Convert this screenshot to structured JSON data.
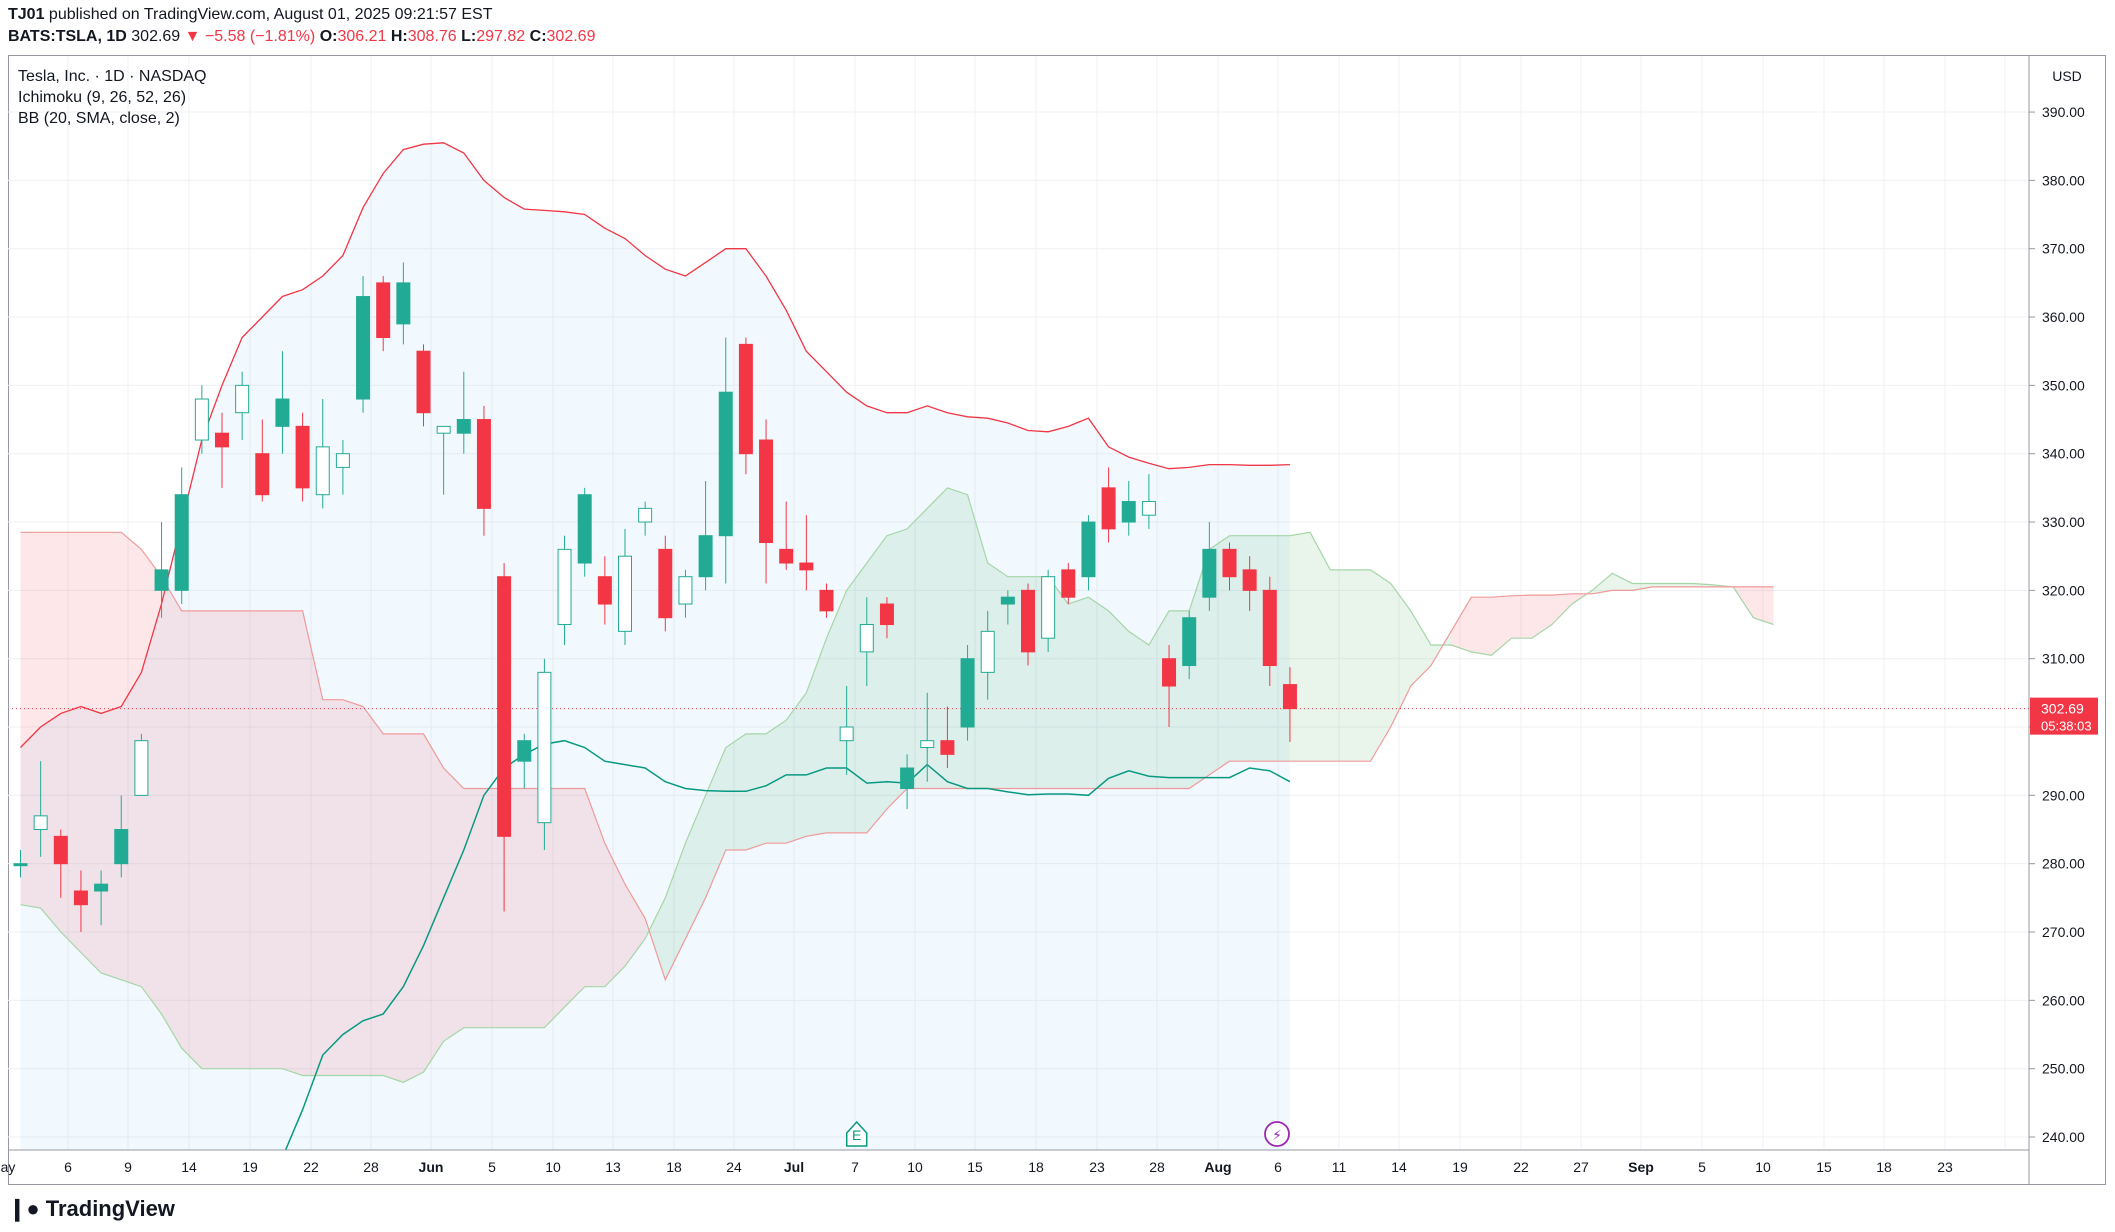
{
  "header": {
    "author": "TJ01",
    "published_text": "published on TradingView.com, August 01, 2025 09:21:57 EST",
    "symbol": "BATS:TSLA, 1D",
    "last": "302.69",
    "change": "▼ −5.58 (−1.81%)",
    "o_label": "O:",
    "o": "306.21",
    "h_label": "H:",
    "h": "308.76",
    "l_label": "L:",
    "l": "297.82",
    "c_label": "C:",
    "c": "302.69"
  },
  "legend": {
    "title": "Tesla, Inc. · 1D · NASDAQ",
    "ichimoku": "Ichimoku (9, 26, 52, 26)",
    "bb": "BB (20, SMA, close, 2)"
  },
  "price_axis": {
    "currency": "USD",
    "last_price": "302.69",
    "countdown": "05:38:03"
  },
  "footer": {
    "logo": "TradingView"
  },
  "colors": {
    "up": "#22ab94",
    "down": "#f23645",
    "bb": "#f23645",
    "bb_fill": "#e3f2fd",
    "base_line": "#089981",
    "cloud_green": "#a5d6a7",
    "cloud_red": "#f7a9a7"
  },
  "chart_data": {
    "type": "candlestick",
    "ylim": [
      237,
      395
    ],
    "y_ticks": [
      240,
      250,
      260,
      270,
      280,
      290,
      300,
      310,
      320,
      330,
      340,
      350,
      360,
      370,
      380,
      390
    ],
    "x_ticks": [
      "ay",
      "6",
      "9",
      "14",
      "19",
      "22",
      "28",
      "Jun",
      "5",
      "10",
      "13",
      "18",
      "24",
      "Jul",
      "7",
      "10",
      "15",
      "18",
      "23",
      "28",
      "Aug",
      "6",
      "11",
      "14",
      "19",
      "22",
      "27",
      "Sep",
      "5",
      "10",
      "15",
      "18",
      "23"
    ],
    "markers": [
      "E",
      "⚡"
    ],
    "candles": [
      {
        "o": 280,
        "h": 282,
        "l": 278,
        "c": 280
      },
      {
        "o": 285,
        "h": 295,
        "l": 281,
        "c": 287
      },
      {
        "o": 284,
        "h": 285,
        "l": 275,
        "c": 280
      },
      {
        "o": 276,
        "h": 279,
        "l": 270,
        "c": 274
      },
      {
        "o": 276,
        "h": 279,
        "l": 271,
        "c": 277
      },
      {
        "o": 280,
        "h": 290,
        "l": 278,
        "c": 285
      },
      {
        "o": 290,
        "h": 299,
        "l": 290,
        "c": 298
      },
      {
        "o": 320,
        "h": 330,
        "l": 316,
        "c": 323
      },
      {
        "o": 320,
        "h": 338,
        "l": 318,
        "c": 334
      },
      {
        "o": 342,
        "h": 350,
        "l": 340,
        "c": 348
      },
      {
        "o": 343,
        "h": 346,
        "l": 335,
        "c": 341
      },
      {
        "o": 346,
        "h": 352,
        "l": 342,
        "c": 350
      },
      {
        "o": 340,
        "h": 345,
        "l": 333,
        "c": 334
      },
      {
        "o": 344,
        "h": 355,
        "l": 340,
        "c": 348
      },
      {
        "o": 344,
        "h": 346,
        "l": 333,
        "c": 335
      },
      {
        "o": 334,
        "h": 348,
        "l": 332,
        "c": 341
      },
      {
        "o": 338,
        "h": 342,
        "l": 334,
        "c": 340
      },
      {
        "o": 348,
        "h": 366,
        "l": 346,
        "c": 363
      },
      {
        "o": 365,
        "h": 366,
        "l": 355,
        "c": 357
      },
      {
        "o": 359,
        "h": 368,
        "l": 356,
        "c": 365
      },
      {
        "o": 355,
        "h": 356,
        "l": 344,
        "c": 346
      },
      {
        "o": 343,
        "h": 344,
        "l": 334,
        "c": 344
      },
      {
        "o": 343,
        "h": 352,
        "l": 340,
        "c": 345
      },
      {
        "o": 345,
        "h": 347,
        "l": 328,
        "c": 332
      },
      {
        "o": 322,
        "h": 324,
        "l": 273,
        "c": 284
      },
      {
        "o": 295,
        "h": 299,
        "l": 291,
        "c": 298
      },
      {
        "o": 286,
        "h": 310,
        "l": 282,
        "c": 308
      },
      {
        "o": 315,
        "h": 328,
        "l": 312,
        "c": 326
      },
      {
        "o": 324,
        "h": 335,
        "l": 322,
        "c": 334
      },
      {
        "o": 322,
        "h": 325,
        "l": 315,
        "c": 318
      },
      {
        "o": 314,
        "h": 329,
        "l": 312,
        "c": 325
      },
      {
        "o": 330,
        "h": 333,
        "l": 328,
        "c": 332
      },
      {
        "o": 326,
        "h": 328,
        "l": 314,
        "c": 316
      },
      {
        "o": 318,
        "h": 323,
        "l": 316,
        "c": 322
      },
      {
        "o": 322,
        "h": 336,
        "l": 320,
        "c": 328
      },
      {
        "o": 328,
        "h": 357,
        "l": 321,
        "c": 349
      },
      {
        "o": 356,
        "h": 357,
        "l": 337,
        "c": 340
      },
      {
        "o": 342,
        "h": 345,
        "l": 321,
        "c": 327
      },
      {
        "o": 326,
        "h": 333,
        "l": 323,
        "c": 324
      },
      {
        "o": 324,
        "h": 331,
        "l": 320,
        "c": 323
      },
      {
        "o": 320,
        "h": 321,
        "l": 316,
        "c": 317
      },
      {
        "o": 298,
        "h": 306,
        "l": 293,
        "c": 300
      },
      {
        "o": 311,
        "h": 319,
        "l": 306,
        "c": 315
      },
      {
        "o": 318,
        "h": 319,
        "l": 313,
        "c": 315
      },
      {
        "o": 291,
        "h": 296,
        "l": 288,
        "c": 294
      },
      {
        "o": 297,
        "h": 305,
        "l": 292,
        "c": 298
      },
      {
        "o": 298,
        "h": 303,
        "l": 294,
        "c": 296
      },
      {
        "o": 300,
        "h": 312,
        "l": 298,
        "c": 310
      },
      {
        "o": 308,
        "h": 317,
        "l": 304,
        "c": 314
      },
      {
        "o": 318,
        "h": 320,
        "l": 315,
        "c": 319
      },
      {
        "o": 320,
        "h": 321,
        "l": 309,
        "c": 311
      },
      {
        "o": 313,
        "h": 323,
        "l": 311,
        "c": 322
      },
      {
        "o": 323,
        "h": 324,
        "l": 318,
        "c": 319
      },
      {
        "o": 322,
        "h": 331,
        "l": 320,
        "c": 330
      },
      {
        "o": 335,
        "h": 338,
        "l": 327,
        "c": 329
      },
      {
        "o": 330,
        "h": 336,
        "l": 328,
        "c": 333
      },
      {
        "o": 331,
        "h": 337,
        "l": 329,
        "c": 333
      },
      {
        "o": 310,
        "h": 312,
        "l": 300,
        "c": 306
      },
      {
        "o": 309,
        "h": 317,
        "l": 307,
        "c": 316
      },
      {
        "o": 319,
        "h": 330,
        "l": 317,
        "c": 326
      },
      {
        "o": 326,
        "h": 327,
        "l": 320,
        "c": 322
      },
      {
        "o": 323,
        "h": 325,
        "l": 317,
        "c": 320
      },
      {
        "o": 320,
        "h": 322,
        "l": 306,
        "c": 309
      },
      {
        "o": 306.21,
        "h": 308.76,
        "l": 297.82,
        "c": 302.69
      }
    ],
    "bb_upper": [
      [
        0,
        297
      ],
      [
        1,
        300
      ],
      [
        2,
        302
      ],
      [
        3,
        303
      ],
      [
        4,
        302
      ],
      [
        5,
        303
      ],
      [
        6,
        308
      ],
      [
        7,
        318
      ],
      [
        8,
        330
      ],
      [
        9,
        342
      ],
      [
        10,
        350
      ],
      [
        11,
        357
      ],
      [
        12,
        360
      ],
      [
        13,
        363
      ],
      [
        14,
        364
      ],
      [
        15,
        366
      ],
      [
        16,
        369
      ],
      [
        17,
        376
      ],
      [
        18,
        381
      ],
      [
        19,
        384.5
      ],
      [
        20,
        385.3
      ],
      [
        21,
        385.5
      ],
      [
        22,
        384
      ],
      [
        23,
        380
      ],
      [
        24,
        377.5
      ],
      [
        25,
        375.8
      ],
      [
        26,
        375.6
      ],
      [
        27,
        375.4
      ],
      [
        28,
        375
      ],
      [
        29,
        373
      ],
      [
        30,
        371.5
      ],
      [
        31,
        369
      ],
      [
        32,
        367
      ],
      [
        33,
        366
      ],
      [
        34,
        368
      ],
      [
        35,
        370
      ],
      [
        36,
        370
      ],
      [
        37,
        366
      ],
      [
        38,
        361
      ],
      [
        39,
        355
      ],
      [
        40,
        352
      ],
      [
        41,
        349
      ],
      [
        42,
        347
      ],
      [
        43,
        346
      ],
      [
        44,
        346
      ],
      [
        45,
        347
      ],
      [
        46,
        346
      ],
      [
        47,
        345.4
      ],
      [
        48,
        345.2
      ],
      [
        49,
        344.5
      ],
      [
        50,
        343.4
      ],
      [
        51,
        343.2
      ],
      [
        52,
        344
      ],
      [
        53,
        345.2
      ],
      [
        54,
        341
      ],
      [
        55,
        339.5
      ],
      [
        56,
        338.6
      ],
      [
        57,
        337.8
      ],
      [
        58,
        338
      ],
      [
        59,
        338.4
      ],
      [
        60,
        338.4
      ],
      [
        61,
        338.3
      ],
      [
        62,
        338.3
      ],
      [
        63,
        338.4
      ]
    ],
    "bb_lower_visible_until": 63,
    "base_line": [
      [
        13,
        237
      ],
      [
        14,
        244
      ],
      [
        15,
        252
      ],
      [
        16,
        255
      ],
      [
        17,
        257
      ],
      [
        18,
        258
      ],
      [
        19,
        262
      ],
      [
        20,
        268
      ],
      [
        21,
        275
      ],
      [
        22,
        282
      ],
      [
        23,
        290
      ],
      [
        24,
        294
      ],
      [
        25,
        296
      ],
      [
        26,
        297.5
      ],
      [
        27,
        298
      ],
      [
        28,
        297
      ],
      [
        29,
        295
      ],
      [
        30,
        294.5
      ],
      [
        31,
        294
      ],
      [
        32,
        292
      ],
      [
        33,
        291
      ],
      [
        34,
        290.7
      ],
      [
        35,
        290.6
      ],
      [
        36,
        290.6
      ],
      [
        37,
        291.4
      ],
      [
        38,
        293
      ],
      [
        39,
        293
      ],
      [
        40,
        294
      ],
      [
        41,
        294
      ],
      [
        42,
        291.8
      ],
      [
        43,
        292
      ],
      [
        44,
        291.8
      ],
      [
        45,
        294.5
      ],
      [
        46,
        292
      ],
      [
        47,
        291
      ],
      [
        48,
        291
      ],
      [
        49,
        290.5
      ],
      [
        50,
        290.1
      ],
      [
        51,
        290.2
      ],
      [
        52,
        290.2
      ],
      [
        53,
        290
      ],
      [
        54,
        292.5
      ],
      [
        55,
        293.6
      ],
      [
        56,
        292.8
      ],
      [
        57,
        292.6
      ],
      [
        58,
        292.6
      ],
      [
        59,
        292.6
      ],
      [
        60,
        292.6
      ],
      [
        61,
        294
      ],
      [
        62,
        293.6
      ],
      [
        63,
        292
      ]
    ],
    "senkou_a": [
      [
        0,
        274
      ],
      [
        1,
        273.5
      ],
      [
        2,
        270
      ],
      [
        3,
        267
      ],
      [
        4,
        264
      ],
      [
        5,
        263
      ],
      [
        6,
        262
      ],
      [
        7,
        258
      ],
      [
        8,
        253
      ],
      [
        9,
        250
      ],
      [
        10,
        250
      ],
      [
        11,
        250
      ],
      [
        12,
        250
      ],
      [
        13,
        250
      ],
      [
        14,
        249
      ],
      [
        15,
        249
      ],
      [
        16,
        249
      ],
      [
        17,
        249
      ],
      [
        18,
        249
      ],
      [
        19,
        248
      ],
      [
        20,
        249.5
      ],
      [
        21,
        254
      ],
      [
        22,
        256
      ],
      [
        23,
        256
      ],
      [
        24,
        256
      ],
      [
        25,
        256
      ],
      [
        26,
        256
      ],
      [
        27,
        259
      ],
      [
        28,
        262
      ],
      [
        29,
        262
      ],
      [
        30,
        265
      ],
      [
        31,
        269
      ],
      [
        32,
        275
      ],
      [
        33,
        283
      ],
      [
        34,
        290
      ],
      [
        35,
        297
      ],
      [
        36,
        299
      ],
      [
        37,
        299
      ],
      [
        38,
        301
      ],
      [
        39,
        305
      ],
      [
        40,
        313
      ],
      [
        41,
        320
      ],
      [
        42,
        324
      ],
      [
        43,
        328
      ],
      [
        44,
        329
      ],
      [
        45,
        332
      ],
      [
        46,
        335
      ],
      [
        47,
        334
      ],
      [
        48,
        324
      ],
      [
        49,
        322
      ],
      [
        50,
        322
      ],
      [
        51,
        322
      ],
      [
        52,
        318
      ],
      [
        53,
        319
      ],
      [
        54,
        317
      ],
      [
        55,
        314
      ],
      [
        56,
        312
      ],
      [
        57,
        317
      ],
      [
        58,
        317
      ],
      [
        59,
        326
      ],
      [
        60,
        328
      ],
      [
        61,
        328
      ],
      [
        62,
        328
      ],
      [
        63,
        328
      ],
      [
        64,
        328.5
      ],
      [
        65,
        323
      ],
      [
        66,
        323
      ],
      [
        67,
        323
      ],
      [
        68,
        321
      ],
      [
        69,
        317
      ],
      [
        70,
        312
      ],
      [
        71,
        312
      ],
      [
        72,
        311
      ],
      [
        73,
        310.5
      ],
      [
        74,
        313
      ],
      [
        75,
        313
      ],
      [
        76,
        315
      ],
      [
        77,
        318
      ],
      [
        78,
        320
      ],
      [
        79,
        322.5
      ],
      [
        80,
        321
      ],
      [
        81,
        321
      ],
      [
        82,
        321
      ],
      [
        83,
        321
      ],
      [
        84,
        320.8
      ],
      [
        85,
        320.5
      ],
      [
        86,
        316
      ],
      [
        87,
        315
      ]
    ],
    "senkou_b": [
      [
        0,
        328.5
      ],
      [
        1,
        328.5
      ],
      [
        2,
        328.5
      ],
      [
        3,
        328.5
      ],
      [
        4,
        328.5
      ],
      [
        5,
        328.5
      ],
      [
        6,
        326
      ],
      [
        7,
        322
      ],
      [
        8,
        317
      ],
      [
        9,
        317
      ],
      [
        10,
        317
      ],
      [
        11,
        317
      ],
      [
        12,
        317
      ],
      [
        13,
        317
      ],
      [
        14,
        317
      ],
      [
        15,
        304
      ],
      [
        16,
        304
      ],
      [
        17,
        303
      ],
      [
        18,
        299
      ],
      [
        19,
        299
      ],
      [
        20,
        299
      ],
      [
        21,
        294
      ],
      [
        22,
        291
      ],
      [
        23,
        291
      ],
      [
        24,
        291
      ],
      [
        25,
        291
      ],
      [
        26,
        291
      ],
      [
        27,
        291
      ],
      [
        28,
        291
      ],
      [
        29,
        283
      ],
      [
        30,
        277
      ],
      [
        31,
        272
      ],
      [
        32,
        263
      ],
      [
        33,
        269
      ],
      [
        34,
        275
      ],
      [
        35,
        282
      ],
      [
        36,
        282
      ],
      [
        37,
        283
      ],
      [
        38,
        283
      ],
      [
        39,
        284
      ],
      [
        40,
        284.5
      ],
      [
        41,
        284.5
      ],
      [
        42,
        284.5
      ],
      [
        43,
        288
      ],
      [
        44,
        291
      ],
      [
        45,
        291
      ],
      [
        46,
        291
      ],
      [
        47,
        291
      ],
      [
        48,
        291
      ],
      [
        49,
        291
      ],
      [
        50,
        291
      ],
      [
        51,
        291
      ],
      [
        52,
        291
      ],
      [
        53,
        291
      ],
      [
        54,
        291
      ],
      [
        55,
        291
      ],
      [
        56,
        291
      ],
      [
        57,
        291
      ],
      [
        58,
        291
      ],
      [
        59,
        293
      ],
      [
        60,
        295
      ],
      [
        61,
        295
      ],
      [
        62,
        295
      ],
      [
        63,
        295
      ],
      [
        64,
        295
      ],
      [
        65,
        295
      ],
      [
        66,
        295
      ],
      [
        67,
        295
      ],
      [
        68,
        300
      ],
      [
        69,
        306
      ],
      [
        70,
        309
      ],
      [
        71,
        314
      ],
      [
        72,
        319
      ],
      [
        73,
        319
      ],
      [
        74,
        319.2
      ],
      [
        75,
        319.3
      ],
      [
        76,
        319.3
      ],
      [
        77,
        319.5
      ],
      [
        78,
        319.5
      ],
      [
        79,
        320
      ],
      [
        80,
        320
      ],
      [
        81,
        320.5
      ],
      [
        82,
        320.5
      ],
      [
        83,
        320.5
      ],
      [
        84,
        320.5
      ],
      [
        85,
        320.5
      ],
      [
        86,
        320.5
      ],
      [
        87,
        320.5
      ]
    ]
  }
}
